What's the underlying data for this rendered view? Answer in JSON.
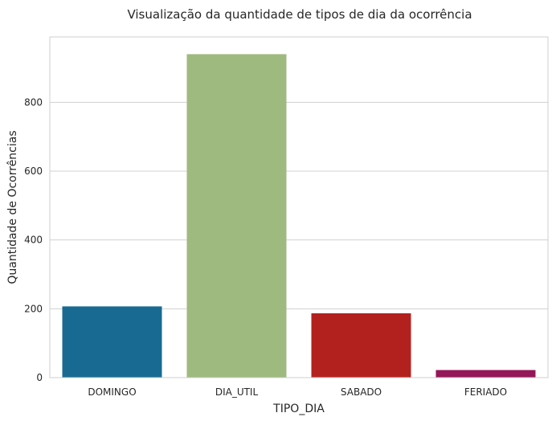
{
  "chart_data": {
    "type": "bar",
    "title": "Visualização da quantidade de tipos de dia da ocorrência",
    "xlabel": "TIPO_DIA",
    "ylabel": "Quantidade de Ocorrências",
    "categories": [
      "DOMINGO",
      "DIA_UTIL",
      "SABADO",
      "FERIADO"
    ],
    "values": [
      207,
      940,
      187,
      22
    ],
    "ylim": [
      0,
      990
    ],
    "yticks": [
      0,
      200,
      400,
      600,
      800
    ],
    "grid": "horizontal",
    "colors": [
      "#186A92",
      "#9FBA7F",
      "#B3211E",
      "#951659"
    ]
  }
}
